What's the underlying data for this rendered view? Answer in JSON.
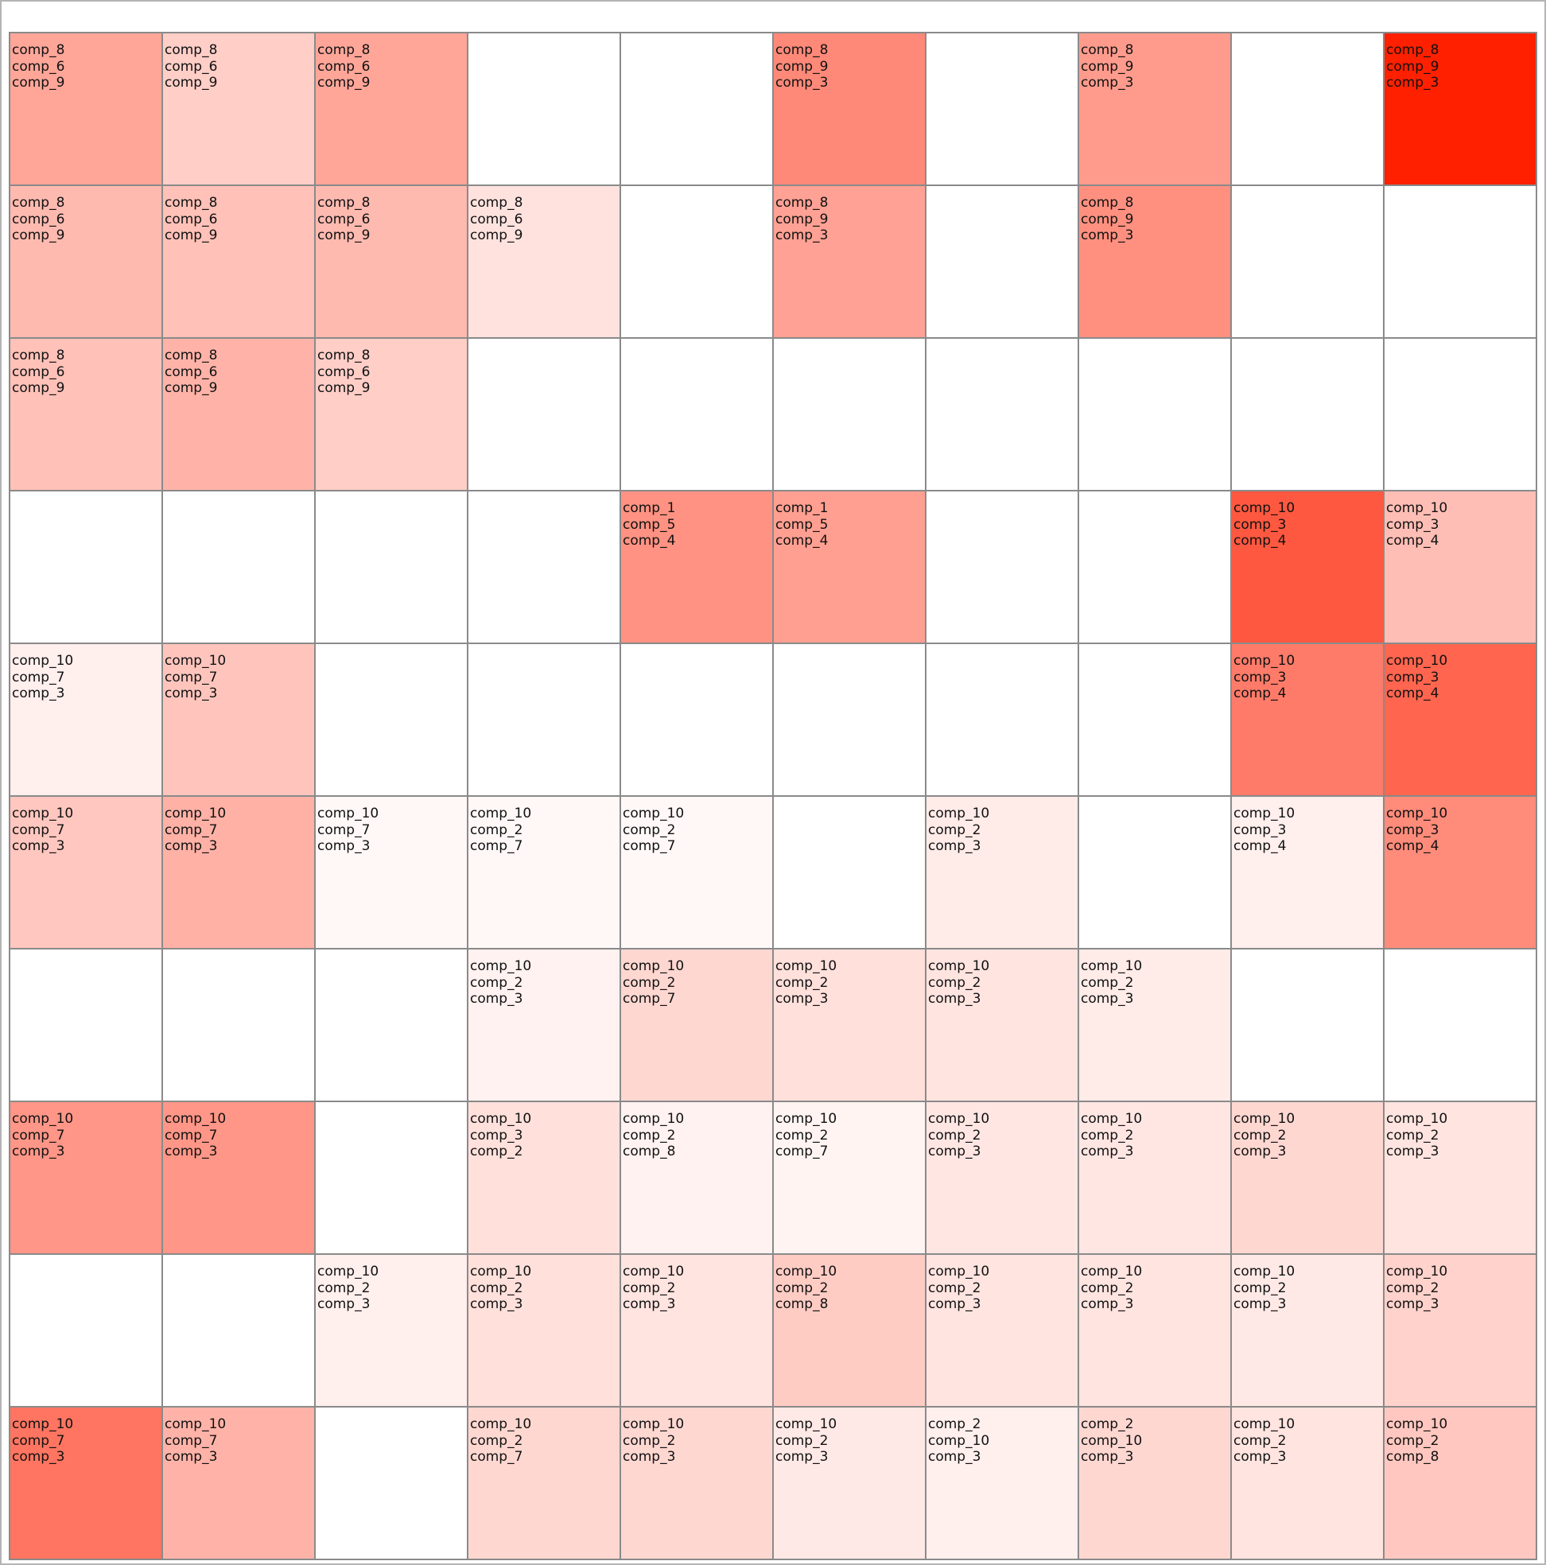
{
  "chart_data": {
    "type": "heatmap",
    "grid": {
      "rows": 10,
      "cols": 10
    },
    "colorscale": {
      "low": "#ffffff",
      "high": "#ff2000"
    },
    "value_range": [
      0,
      1
    ],
    "cells": [
      [
        {
          "labels": [
            "comp_8",
            "comp_6",
            "comp_9"
          ],
          "value": 0.4
        },
        {
          "labels": [
            "comp_8",
            "comp_6",
            "comp_9"
          ],
          "value": 0.22
        },
        {
          "labels": [
            "comp_8",
            "comp_6",
            "comp_9"
          ],
          "value": 0.4
        },
        {
          "labels": [],
          "value": 0
        },
        {
          "labels": [],
          "value": 0
        },
        {
          "labels": [
            "comp_8",
            "comp_9",
            "comp_3"
          ],
          "value": 0.53
        },
        {
          "labels": [],
          "value": 0
        },
        {
          "labels": [
            "comp_8",
            "comp_9",
            "comp_3"
          ],
          "value": 0.45
        },
        {
          "labels": [],
          "value": 0
        },
        {
          "labels": [
            "comp_8",
            "comp_9",
            "comp_3"
          ],
          "value": 1.0
        }
      ],
      [
        {
          "labels": [
            "comp_8",
            "comp_6",
            "comp_9"
          ],
          "value": 0.31
        },
        {
          "labels": [
            "comp_8",
            "comp_6",
            "comp_9"
          ],
          "value": 0.28
        },
        {
          "labels": [
            "comp_8",
            "comp_6",
            "comp_9"
          ],
          "value": 0.31
        },
        {
          "labels": [
            "comp_8",
            "comp_6",
            "comp_9"
          ],
          "value": 0.13
        },
        {
          "labels": [],
          "value": 0
        },
        {
          "labels": [
            "comp_8",
            "comp_9",
            "comp_3"
          ],
          "value": 0.42
        },
        {
          "labels": [],
          "value": 0
        },
        {
          "labels": [
            "comp_8",
            "comp_9",
            "comp_3"
          ],
          "value": 0.5
        },
        {
          "labels": [],
          "value": 0
        },
        {
          "labels": [],
          "value": 0
        }
      ],
      [
        {
          "labels": [
            "comp_8",
            "comp_6",
            "comp_9"
          ],
          "value": 0.28
        },
        {
          "labels": [
            "comp_8",
            "comp_6",
            "comp_9"
          ],
          "value": 0.34
        },
        {
          "labels": [
            "comp_8",
            "comp_6",
            "comp_9"
          ],
          "value": 0.22
        },
        {
          "labels": [],
          "value": 0
        },
        {
          "labels": [],
          "value": 0
        },
        {
          "labels": [],
          "value": 0
        },
        {
          "labels": [],
          "value": 0
        },
        {
          "labels": [],
          "value": 0
        },
        {
          "labels": [],
          "value": 0
        },
        {
          "labels": [],
          "value": 0
        }
      ],
      [
        {
          "labels": [],
          "value": 0
        },
        {
          "labels": [],
          "value": 0
        },
        {
          "labels": [],
          "value": 0
        },
        {
          "labels": [],
          "value": 0
        },
        {
          "labels": [
            "comp_1",
            "comp_5",
            "comp_4"
          ],
          "value": 0.49
        },
        {
          "labels": [
            "comp_1",
            "comp_5",
            "comp_4"
          ],
          "value": 0.43
        },
        {
          "labels": [],
          "value": 0
        },
        {
          "labels": [],
          "value": 0
        },
        {
          "labels": [
            "comp_10",
            "comp_3",
            "comp_4"
          ],
          "value": 0.75
        },
        {
          "labels": [
            "comp_10",
            "comp_3",
            "comp_4"
          ],
          "value": 0.29
        }
      ],
      [
        {
          "labels": [
            "comp_10",
            "comp_7",
            "comp_3"
          ],
          "value": 0.07
        },
        {
          "labels": [
            "comp_10",
            "comp_7",
            "comp_3"
          ],
          "value": 0.26
        },
        {
          "labels": [],
          "value": 0
        },
        {
          "labels": [],
          "value": 0
        },
        {
          "labels": [],
          "value": 0
        },
        {
          "labels": [],
          "value": 0
        },
        {
          "labels": [],
          "value": 0
        },
        {
          "labels": [],
          "value": 0
        },
        {
          "labels": [
            "comp_10",
            "comp_3",
            "comp_4"
          ],
          "value": 0.59
        },
        {
          "labels": [
            "comp_10",
            "comp_3",
            "comp_4"
          ],
          "value": 0.69
        }
      ],
      [
        {
          "labels": [
            "comp_10",
            "comp_7",
            "comp_3"
          ],
          "value": 0.25
        },
        {
          "labels": [
            "comp_10",
            "comp_7",
            "comp_3"
          ],
          "value": 0.35
        },
        {
          "labels": [
            "comp_10",
            "comp_7",
            "comp_3"
          ],
          "value": 0.03
        },
        {
          "labels": [
            "comp_10",
            "comp_2",
            "comp_7"
          ],
          "value": 0.03
        },
        {
          "labels": [
            "comp_10",
            "comp_2",
            "comp_7"
          ],
          "value": 0.03
        },
        {
          "labels": [],
          "value": 0
        },
        {
          "labels": [
            "comp_10",
            "comp_2",
            "comp_3"
          ],
          "value": 0.09
        },
        {
          "labels": [],
          "value": 0
        },
        {
          "labels": [
            "comp_10",
            "comp_3",
            "comp_4"
          ],
          "value": 0.07
        },
        {
          "labels": [
            "comp_10",
            "comp_3",
            "comp_4"
          ],
          "value": 0.52
        }
      ],
      [
        {
          "labels": [],
          "value": 0
        },
        {
          "labels": [],
          "value": 0
        },
        {
          "labels": [],
          "value": 0
        },
        {
          "labels": [
            "comp_10",
            "comp_2",
            "comp_3"
          ],
          "value": 0.06
        },
        {
          "labels": [
            "comp_10",
            "comp_2",
            "comp_7"
          ],
          "value": 0.18
        },
        {
          "labels": [
            "comp_10",
            "comp_2",
            "comp_3"
          ],
          "value": 0.14
        },
        {
          "labels": [
            "comp_10",
            "comp_2",
            "comp_3"
          ],
          "value": 0.12
        },
        {
          "labels": [
            "comp_10",
            "comp_2",
            "comp_3"
          ],
          "value": 0.09
        },
        {
          "labels": [],
          "value": 0
        },
        {
          "labels": [],
          "value": 0
        }
      ],
      [
        {
          "labels": [
            "comp_10",
            "comp_7",
            "comp_3"
          ],
          "value": 0.47
        },
        {
          "labels": [
            "comp_10",
            "comp_7",
            "comp_3"
          ],
          "value": 0.47
        },
        {
          "labels": [],
          "value": 0
        },
        {
          "labels": [
            "comp_10",
            "comp_3",
            "comp_2"
          ],
          "value": 0.14
        },
        {
          "labels": [
            "comp_10",
            "comp_2",
            "comp_8"
          ],
          "value": 0.06
        },
        {
          "labels": [
            "comp_10",
            "comp_2",
            "comp_7"
          ],
          "value": 0.05
        },
        {
          "labels": [
            "comp_10",
            "comp_2",
            "comp_3"
          ],
          "value": 0.11
        },
        {
          "labels": [
            "comp_10",
            "comp_2",
            "comp_3"
          ],
          "value": 0.11
        },
        {
          "labels": [
            "comp_10",
            "comp_2",
            "comp_3"
          ],
          "value": 0.18
        },
        {
          "labels": [
            "comp_10",
            "comp_2",
            "comp_3"
          ],
          "value": 0.12
        }
      ],
      [
        {
          "labels": [],
          "value": 0
        },
        {
          "labels": [],
          "value": 0
        },
        {
          "labels": [
            "comp_10",
            "comp_2",
            "comp_3"
          ],
          "value": 0.07
        },
        {
          "labels": [
            "comp_10",
            "comp_2",
            "comp_3"
          ],
          "value": 0.14
        },
        {
          "labels": [
            "comp_10",
            "comp_2",
            "comp_3"
          ],
          "value": 0.12
        },
        {
          "labels": [
            "comp_10",
            "comp_2",
            "comp_8"
          ],
          "value": 0.23
        },
        {
          "labels": [
            "comp_10",
            "comp_2",
            "comp_3"
          ],
          "value": 0.12
        },
        {
          "labels": [
            "comp_10",
            "comp_2",
            "comp_3"
          ],
          "value": 0.12
        },
        {
          "labels": [
            "comp_10",
            "comp_2",
            "comp_3"
          ],
          "value": 0.1
        },
        {
          "labels": [
            "comp_10",
            "comp_2",
            "comp_3"
          ],
          "value": 0.2
        }
      ],
      [
        {
          "labels": [
            "comp_10",
            "comp_7",
            "comp_3"
          ],
          "value": 0.62
        },
        {
          "labels": [
            "comp_10",
            "comp_7",
            "comp_3"
          ],
          "value": 0.34
        },
        {
          "labels": [],
          "value": 0
        },
        {
          "labels": [
            "comp_10",
            "comp_2",
            "comp_7"
          ],
          "value": 0.18
        },
        {
          "labels": [
            "comp_10",
            "comp_2",
            "comp_3"
          ],
          "value": 0.18
        },
        {
          "labels": [
            "comp_10",
            "comp_2",
            "comp_3"
          ],
          "value": 0.1
        },
        {
          "labels": [
            "comp_2",
            "comp_10",
            "comp_3"
          ],
          "value": 0.07
        },
        {
          "labels": [
            "comp_2",
            "comp_10",
            "comp_3"
          ],
          "value": 0.18
        },
        {
          "labels": [
            "comp_10",
            "comp_2",
            "comp_3"
          ],
          "value": 0.12
        },
        {
          "labels": [
            "comp_10",
            "comp_2",
            "comp_8"
          ],
          "value": 0.25
        }
      ]
    ]
  }
}
